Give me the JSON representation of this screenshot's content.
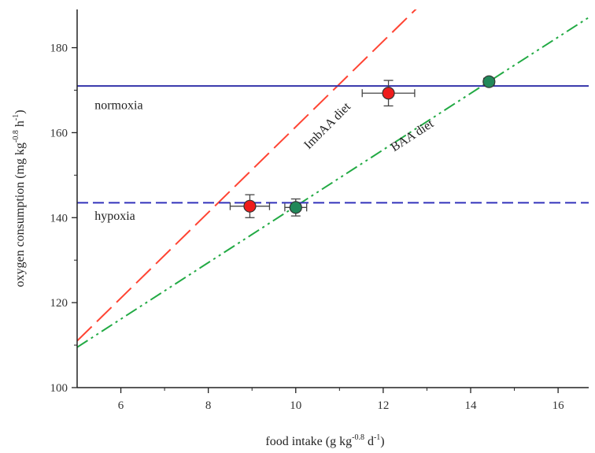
{
  "chart_data": {
    "type": "line",
    "xlabel": {
      "main": "food intake (g kg",
      "sup1": "-0.8",
      "mid": " d",
      "sup2": "-1",
      "end": ")"
    },
    "ylabel": {
      "main": "oxygen consumption (mg kg",
      "sup1": "-0.8",
      "mid": " h",
      "sup2": "-1",
      "end": ")"
    },
    "xlim": [
      5,
      16.7
    ],
    "ylim": [
      100,
      189
    ],
    "xticks": [
      6,
      8,
      10,
      12,
      14,
      16
    ],
    "yticks": [
      100,
      120,
      140,
      160,
      180
    ],
    "grid": false,
    "lines": [
      {
        "label": "ImbAA diet",
        "x": [
          5,
          12.9,
          16.7
        ],
        "y": [
          111,
          190.6,
          228.9
        ],
        "color": "#ff4433",
        "dash": "long-dash"
      },
      {
        "label": "BAA diet",
        "x": [
          5,
          14.4,
          16.7
        ],
        "y": [
          109.5,
          171.9,
          187.1
        ],
        "color": "#22aa44",
        "dash": "dash-dot-dot"
      },
      {
        "label": "normoxia",
        "x": [
          5,
          16.7
        ],
        "y": [
          171,
          171
        ],
        "color": "#3333aa",
        "dash": "solid"
      },
      {
        "label": "hypoxia",
        "x": [
          5,
          16.7
        ],
        "y": [
          143.5,
          143.5
        ],
        "color": "#3333bb",
        "dash": "dashed"
      }
    ],
    "points": [
      {
        "series": "ImbAA diet",
        "x": 8.95,
        "y": 142.7,
        "xerr": 0.45,
        "yerr": 2.7,
        "color": "#ee1c1c"
      },
      {
        "series": "ImbAA diet",
        "x": 12.12,
        "y": 169.3,
        "xerr": 0.6,
        "yerr": 3.0,
        "color": "#ee1c1c"
      },
      {
        "series": "BAA diet",
        "x": 10.0,
        "y": 142.4,
        "xerr": 0.25,
        "yerr": 2.0,
        "color": "#22885a"
      },
      {
        "series": "BAA diet",
        "x": 14.42,
        "y": 172.0,
        "xerr": 0.12,
        "yerr": 0.8,
        "color": "#22885a"
      }
    ],
    "annotations": [
      {
        "text": "normoxia",
        "x": 5.4,
        "y": 165.5
      },
      {
        "text": "hypoxia",
        "x": 5.4,
        "y": 139.5
      },
      {
        "text": "ImbAA diet",
        "x": 10.3,
        "y": 156,
        "angle": -45
      },
      {
        "text": "BAA diet",
        "x": 12.25,
        "y": 155.5,
        "angle": -33
      }
    ]
  }
}
